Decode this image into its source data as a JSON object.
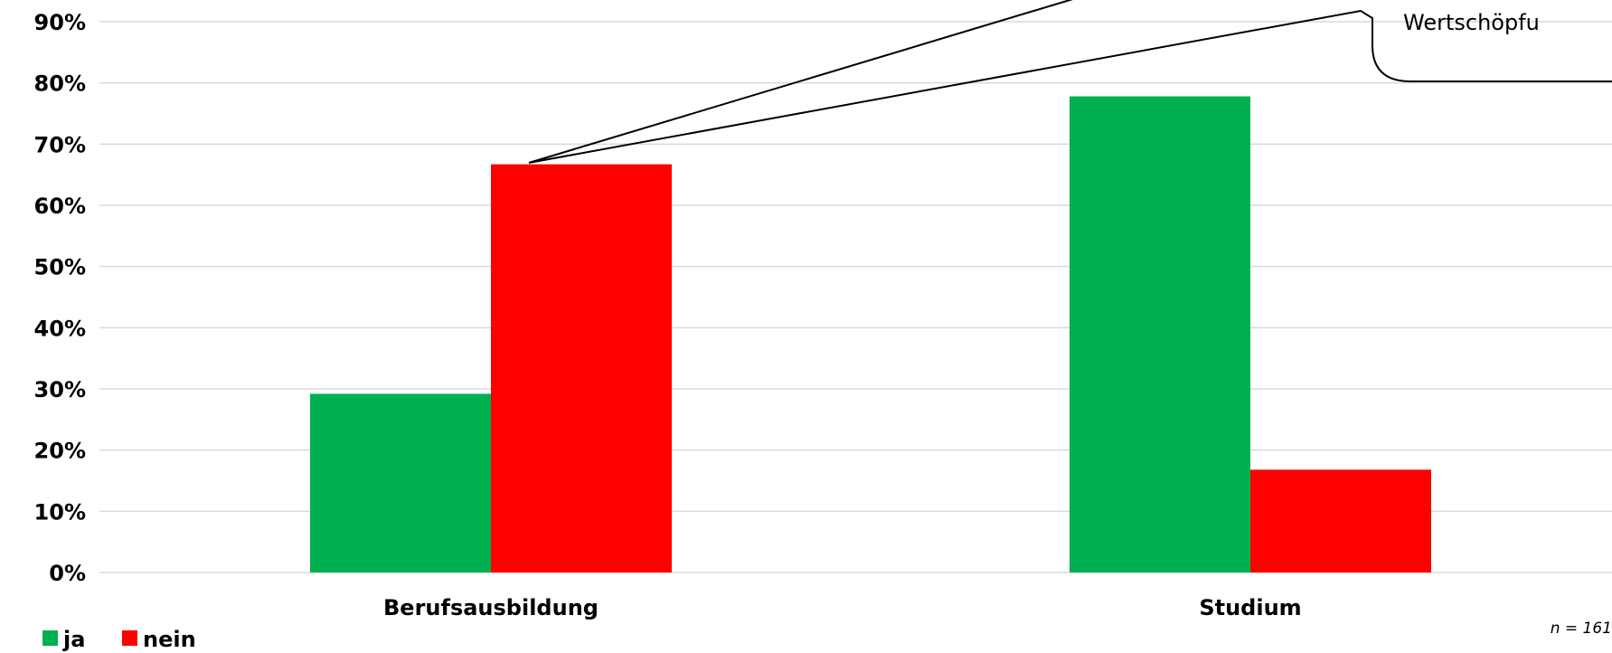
{
  "chart_data": {
    "type": "bar",
    "categories": [
      "Berufsausbildung",
      "Studium"
    ],
    "series": [
      {
        "name": "ja",
        "values": [
          29.2,
          77.8
        ]
      },
      {
        "name": "nein",
        "values": [
          66.7,
          16.8
        ]
      }
    ],
    "ylim": [
      0,
      90
    ],
    "yticks": [
      "0%",
      "10%",
      "20%",
      "30%",
      "40%",
      "50%",
      "60%",
      "70%",
      "80%",
      "90%"
    ],
    "grid": true,
    "legend_position": "bottom-left",
    "annotations": {
      "callout": "Wertschöpfu",
      "sample_size": "n = 161"
    }
  },
  "colors": {
    "ja": "#00b050",
    "nein": "#ff0000",
    "grid": "#d9d9d9"
  }
}
